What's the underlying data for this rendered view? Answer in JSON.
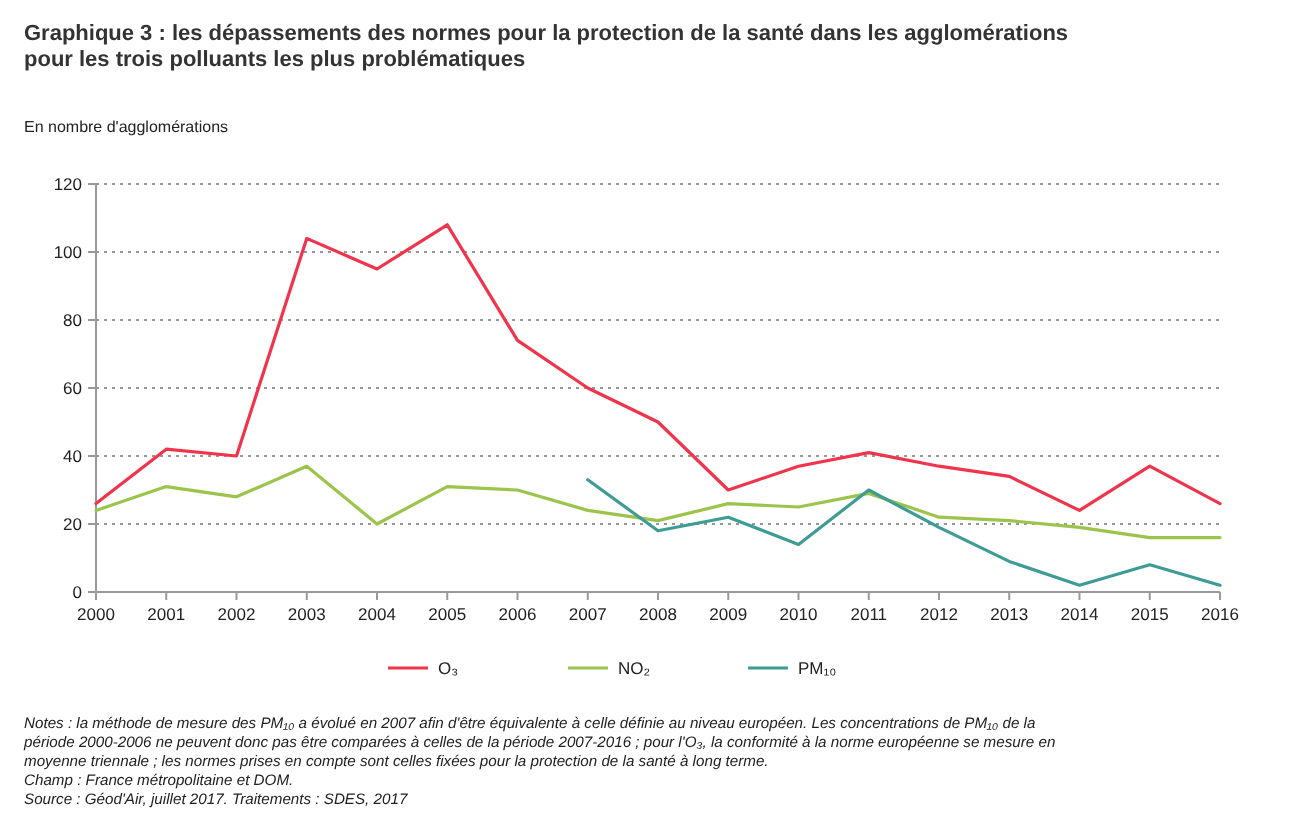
{
  "chart_data": {
    "type": "line",
    "title": "Graphique 3 : les dépassements des normes pour la protection de la santé dans les agglomérations pour les trois polluants les plus problématiques",
    "ylabel": "En nombre d'agglomérations",
    "x": [
      2000,
      2001,
      2002,
      2003,
      2004,
      2005,
      2006,
      2007,
      2008,
      2009,
      2010,
      2011,
      2012,
      2013,
      2014,
      2015,
      2016
    ],
    "xlim": [
      2000,
      2016
    ],
    "xticks": [
      2000,
      2001,
      2002,
      2003,
      2004,
      2005,
      2006,
      2007,
      2008,
      2009,
      2010,
      2011,
      2012,
      2013,
      2014,
      2015,
      2016
    ],
    "ylim": [
      0,
      120
    ],
    "yticks": [
      0,
      20,
      40,
      60,
      80,
      100,
      120
    ],
    "grid": "y",
    "legend": "bottom",
    "marker": "none",
    "line_style": "solid",
    "series": [
      {
        "name": "O₃",
        "color": "#f0344c",
        "values": [
          26,
          42,
          40,
          104,
          95,
          108,
          74,
          60,
          50,
          30,
          37,
          41,
          37,
          34,
          24,
          37,
          26
        ]
      },
      {
        "name": "NO₂",
        "color": "#9cc44c",
        "values": [
          24,
          31,
          28,
          37,
          20,
          31,
          30,
          24,
          21,
          26,
          25,
          29,
          22,
          21,
          19,
          16,
          16
        ]
      },
      {
        "name": "PM₁₀",
        "color": "#3e9c94",
        "x": [
          2007,
          2008,
          2009,
          2010,
          2011,
          2012,
          2013,
          2014,
          2015,
          2016
        ],
        "values": [
          33,
          18,
          22,
          14,
          30,
          19,
          9,
          2,
          8,
          2
        ]
      }
    ],
    "annotations": [
      "Notes : la méthode de mesure des PM₁₀ a évolué en 2007 afin d'être équivalente à celle définie au niveau européen. Les concentrations de PM₁₀ de la période 2000-2006 ne peuvent donc pas être comparées à celles de la période 2007-2016 ; pour l'O₃, la conformité à la norme européenne se mesure en moyenne triennale ; les normes prises en compte sont celles fixées pour la protection de la santé à long terme.",
      "Champ : France métropolitaine et DOM.",
      "Source : Géod'Air, juillet 2017. Traitements : SDES, 2017"
    ]
  }
}
